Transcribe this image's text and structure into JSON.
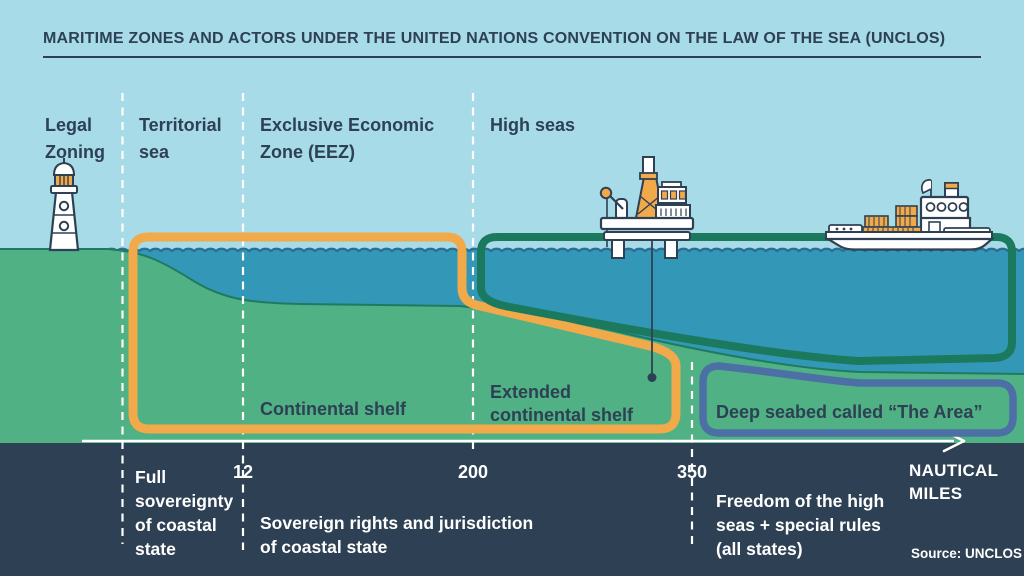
{
  "header": {
    "title": "MARITIME ZONES AND ACTORS UNDER THE UNITED NATIONS CONVENTION ON THE LAW OF THE SEA (UNCLOS)"
  },
  "zone_labels": {
    "legal_zoning": "Legal\nZoning",
    "territorial_sea": "Territorial\nsea",
    "eez": "Exclusive Economic\nZone (EEZ)",
    "high_seas": "High seas"
  },
  "seabed_labels": {
    "continental_shelf": "Continental shelf",
    "extended_continental_shelf": "Extended\ncontinental shelf",
    "deep_seabed": "Deep seabed called “The Area”"
  },
  "axis": {
    "ticks": [
      "12",
      "200",
      "350"
    ],
    "unit": "NAUTICAL\nMILES"
  },
  "band_notes": {
    "territorial": "Full\nsovereignty\nof coastal\nstate",
    "eez": "Sovereign rights and jurisdiction\nof coastal state",
    "high_seas": "Freedom of the high\nseas + special rules\n(all states)"
  },
  "source": "Source: UNCLOS",
  "icons": {
    "lighthouse": "lighthouse-icon",
    "oil_rig": "oil-rig-icon",
    "cargo_ship": "cargo-ship-icon"
  },
  "colors": {
    "sky": "#a7dbe8",
    "sea": "#3398b7",
    "land": "#50b185",
    "ink": "#2e4053",
    "band": "#2e4053",
    "orange": "#f2a949",
    "teal": "#1b7a5e",
    "navy": "#4c6fa6",
    "waveline": "#2d6e94",
    "seabedline": "#1f7a5f",
    "white": "#ffffff"
  }
}
